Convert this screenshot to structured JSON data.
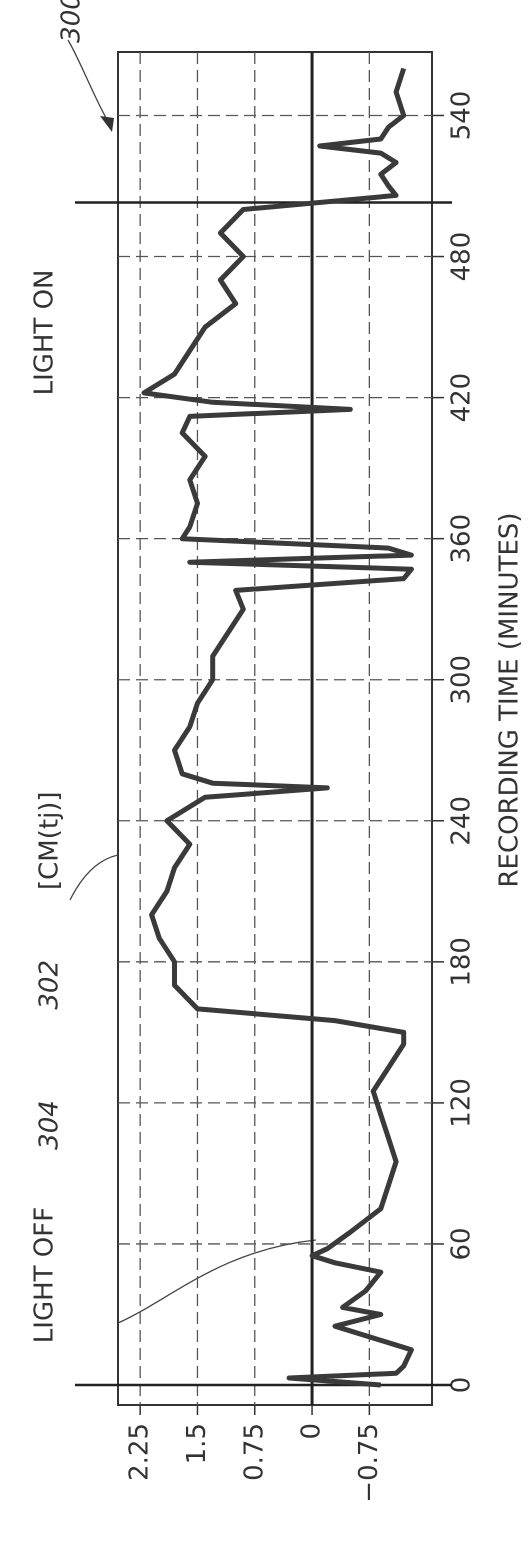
{
  "chart_data": {
    "type": "line",
    "figure_number": "300",
    "x_label": "RECORDING TIME (MINUTES)",
    "x": [
      0,
      3,
      5,
      8,
      15,
      25,
      30,
      33,
      40,
      48,
      52,
      55,
      58,
      65,
      75,
      85,
      95,
      105,
      115,
      125,
      135,
      145,
      150,
      155,
      160,
      170,
      180,
      190,
      200,
      210,
      220,
      230,
      240,
      250,
      254,
      256,
      260,
      270,
      280,
      290,
      300,
      310,
      320,
      330,
      338,
      343,
      347,
      350,
      353,
      356,
      360,
      365,
      375,
      385,
      395,
      405,
      412,
      415,
      418,
      422,
      430,
      440,
      450,
      460,
      470,
      480,
      490,
      500,
      506,
      510,
      515,
      520,
      524,
      527,
      530,
      535,
      540,
      550,
      560
    ],
    "series": [
      {
        "name": "[CM(tj)]",
        "label": "302",
        "color": "#3a3a3a",
        "values": [
          -0.9,
          0.3,
          -1.1,
          -1.2,
          -1.3,
          -0.3,
          -0.9,
          -0.4,
          -0.7,
          -0.9,
          -0.3,
          0.0,
          -0.2,
          -0.5,
          -0.9,
          -1.0,
          -1.1,
          -1.0,
          -0.9,
          -0.8,
          -1.0,
          -1.2,
          -1.2,
          -0.3,
          1.5,
          1.8,
          1.8,
          2.0,
          2.1,
          1.9,
          1.8,
          1.6,
          1.9,
          1.4,
          -0.2,
          1.3,
          1.7,
          1.8,
          1.6,
          1.5,
          1.3,
          1.3,
          1.1,
          0.9,
          1.0,
          -1.2,
          -1.3,
          1.6,
          -1.3,
          -1.0,
          1.7,
          1.6,
          1.5,
          1.6,
          1.4,
          1.7,
          1.6,
          -0.5,
          1.3,
          2.2,
          1.8,
          1.6,
          1.4,
          1.0,
          1.2,
          0.9,
          1.2,
          0.9,
          -1.1,
          -1.0,
          -0.9,
          -1.1,
          -0.9,
          -0.1,
          -0.9,
          -1.0,
          -1.2,
          -1.1,
          -1.2
        ]
      }
    ],
    "reference_line": {
      "value": 0,
      "label": "304"
    },
    "events": [
      {
        "label": "LIGHT OFF",
        "x": 0
      },
      {
        "label": "LIGHT ON",
        "x": 503
      }
    ],
    "xlim": [
      -8.5,
      567
    ],
    "xticks": [
      0,
      60,
      120,
      180,
      240,
      300,
      360,
      420,
      480,
      540
    ],
    "ylim": [
      -1.57,
      2.54
    ],
    "yticks": [
      2.25,
      1.5,
      0.75,
      0,
      {
        "value": -0.75,
        "label": "−0.75"
      }
    ],
    "grid": true,
    "orientation": "rotated"
  }
}
